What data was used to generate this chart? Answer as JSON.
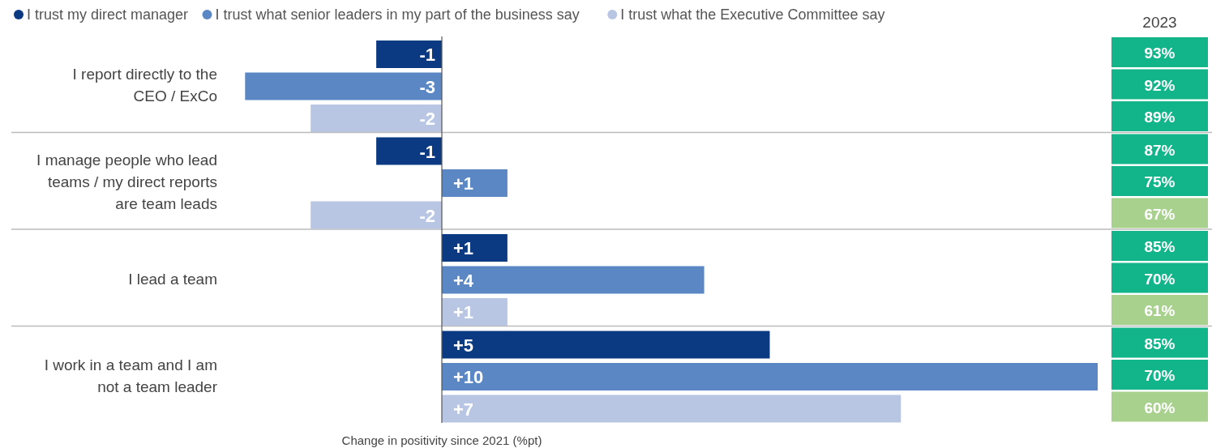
{
  "chart_data": [
    {
      "type": "bar",
      "orientation": "horizontal",
      "categories": [
        "I report directly to the CEO / ExCo",
        "I manage people who lead teams / my direct reports are team leads",
        "I lead a team",
        "I work in a team and I am not a team leader"
      ],
      "xlabel": "Change in positivity since 2021 (%pt)",
      "legend": "top left",
      "series": [
        {
          "name": "I trust my direct manager",
          "color": "#0b3a82",
          "values": [
            -1,
            -1,
            1,
            5
          ],
          "value_labels": [
            "-1",
            "-1",
            "+1",
            "+5"
          ]
        },
        {
          "name": "I trust what senior leaders in my part of the business say",
          "color": "#5b87c5",
          "values": [
            -3,
            1,
            4,
            10
          ],
          "value_labels": [
            "-3",
            "+1",
            "+4",
            "+10"
          ]
        },
        {
          "name": "I trust what the Executive Committee say",
          "color": "#b8c6e4",
          "values": [
            -2,
            -2,
            1,
            7
          ],
          "value_labels": [
            "-2",
            "-2",
            "+1",
            "+7"
          ]
        }
      ]
    },
    {
      "type": "other",
      "title": "2023",
      "annotations": [
        "93%",
        "92%",
        "89%",
        "87%",
        "75%",
        "67%",
        "85%",
        "70%",
        "61%",
        "85%",
        "70%",
        "60%"
      ],
      "colors": [
        "#12b48a",
        "#12b48a",
        "#12b48a",
        "#12b48a",
        "#12b48a",
        "#a9d18e",
        "#12b48a",
        "#12b48a",
        "#a9d18e",
        "#12b48a",
        "#12b48a",
        "#a9d18e"
      ]
    }
  ]
}
